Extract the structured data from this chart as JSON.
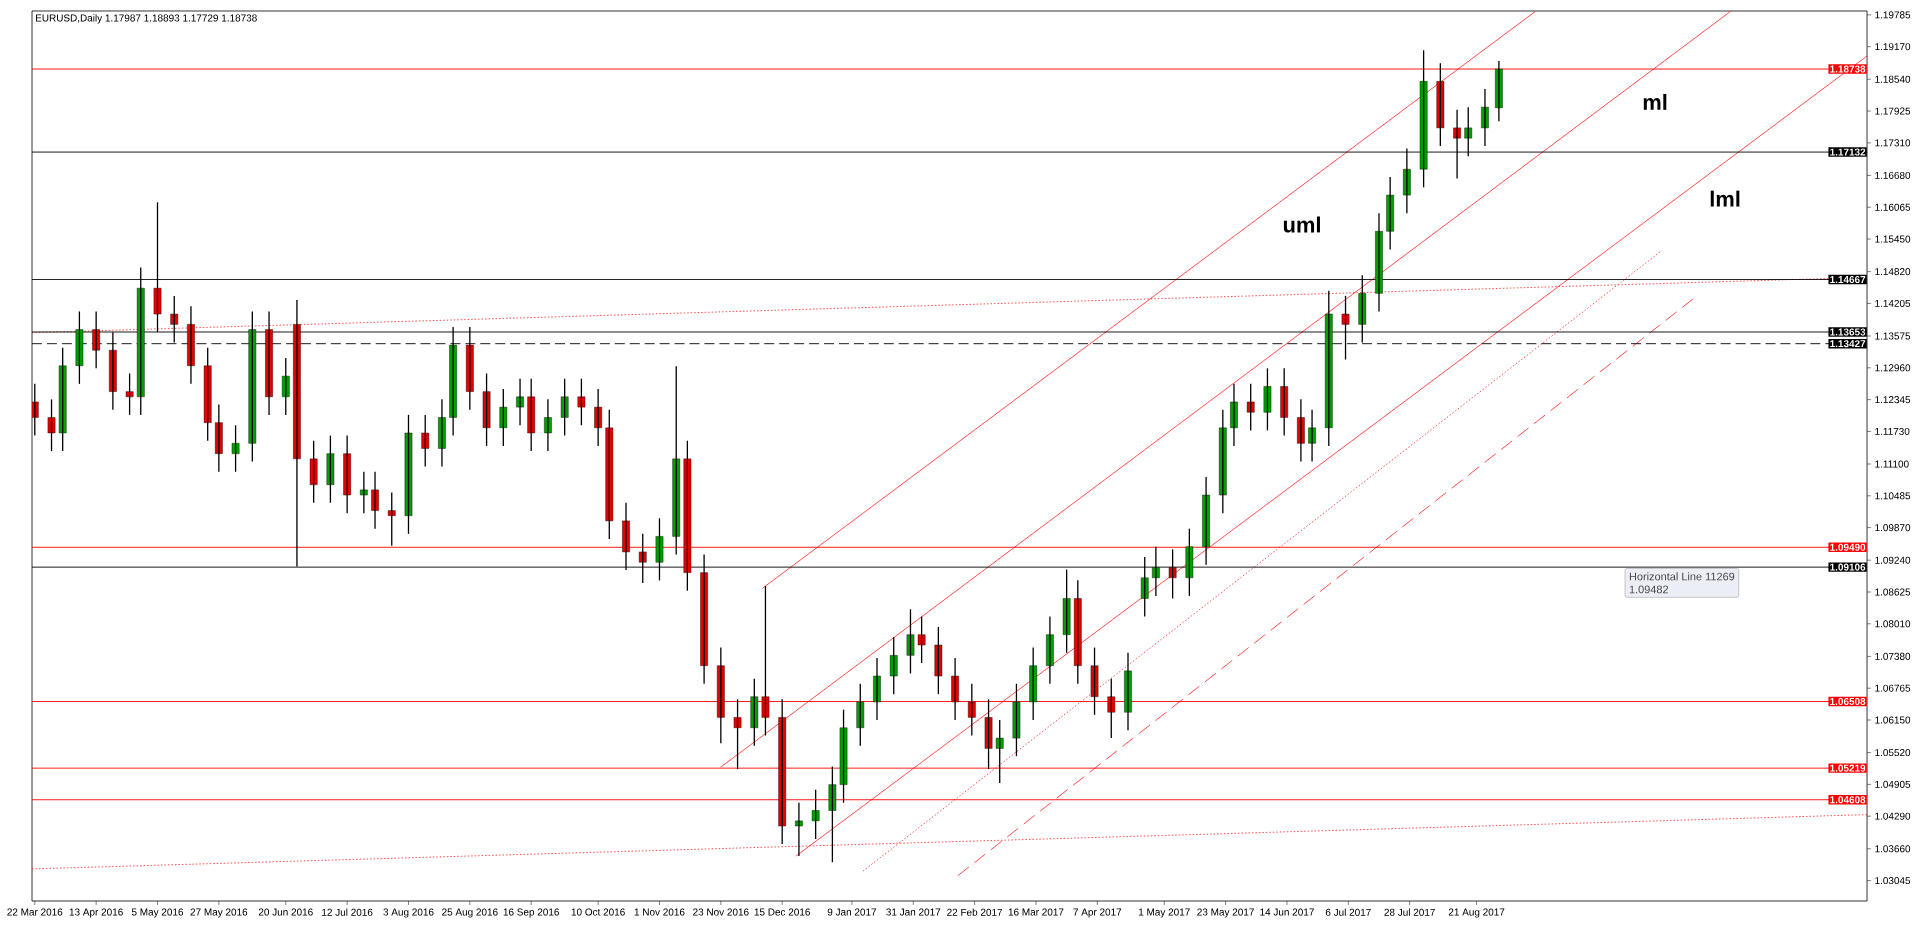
{
  "chart_data": {
    "type": "candlestick",
    "title": "EURUSD,Daily  1.17987 1.18893 1.17729 1.18738",
    "x": [
      "2016-03-22",
      "2016-03-28",
      "2016-04-01",
      "2016-04-07",
      "2016-04-13",
      "2016-04-19",
      "2016-04-25",
      "2016-04-29",
      "2016-05-05",
      "2016-05-11",
      "2016-05-17",
      "2016-05-23",
      "2016-05-27",
      "2016-06-02",
      "2016-06-08",
      "2016-06-14",
      "2016-06-20",
      "2016-06-24",
      "2016-06-30",
      "2016-07-06",
      "2016-07-12",
      "2016-07-18",
      "2016-07-22",
      "2016-07-28",
      "2016-08-03",
      "2016-08-09",
      "2016-08-15",
      "2016-08-19",
      "2016-08-25",
      "2016-08-31",
      "2016-09-06",
      "2016-09-12",
      "2016-09-16",
      "2016-09-22",
      "2016-09-28",
      "2016-10-04",
      "2016-10-10",
      "2016-10-14",
      "2016-10-20",
      "2016-10-26",
      "2016-11-01",
      "2016-11-07",
      "2016-11-11",
      "2016-11-17",
      "2016-11-23",
      "2016-11-29",
      "2016-12-05",
      "2016-12-09",
      "2016-12-15",
      "2016-12-21",
      "2016-12-27",
      "2017-01-02",
      "2017-01-06",
      "2017-01-12",
      "2017-01-18",
      "2017-01-24",
      "2017-01-30",
      "2017-02-03",
      "2017-02-09",
      "2017-02-15",
      "2017-02-21",
      "2017-02-27",
      "2017-03-03",
      "2017-03-09",
      "2017-03-15",
      "2017-03-21",
      "2017-03-27",
      "2017-03-31",
      "2017-04-06",
      "2017-04-12",
      "2017-04-18",
      "2017-04-24",
      "2017-04-28",
      "2017-05-04",
      "2017-05-10",
      "2017-05-16",
      "2017-05-22",
      "2017-05-26",
      "2017-06-01",
      "2017-06-07",
      "2017-06-13",
      "2017-06-19",
      "2017-06-23",
      "2017-06-29",
      "2017-07-05",
      "2017-07-11",
      "2017-07-17",
      "2017-07-21",
      "2017-07-27",
      "2017-08-02",
      "2017-08-08",
      "2017-08-14",
      "2017-08-18",
      "2017-08-24",
      "2017-08-29"
    ],
    "ohlc": [
      [
        1.123,
        1.1265,
        1.1165,
        1.12
      ],
      [
        1.12,
        1.1235,
        1.1135,
        1.117
      ],
      [
        1.117,
        1.1335,
        1.1135,
        1.13
      ],
      [
        1.13,
        1.1405,
        1.1265,
        1.137
      ],
      [
        1.137,
        1.1405,
        1.1295,
        1.133
      ],
      [
        1.133,
        1.1365,
        1.1215,
        1.125
      ],
      [
        1.125,
        1.1285,
        1.1205,
        1.124
      ],
      [
        1.124,
        1.149,
        1.1205,
        1.145
      ],
      [
        1.145,
        1.1616,
        1.1365,
        1.14
      ],
      [
        1.14,
        1.1435,
        1.1345,
        1.138
      ],
      [
        1.138,
        1.1415,
        1.1265,
        1.13
      ],
      [
        1.13,
        1.1335,
        1.1155,
        1.119
      ],
      [
        1.119,
        1.1225,
        1.1095,
        1.113
      ],
      [
        1.113,
        1.1185,
        1.1095,
        1.115
      ],
      [
        1.115,
        1.1405,
        1.1115,
        1.137
      ],
      [
        1.137,
        1.1405,
        1.1205,
        1.124
      ],
      [
        1.124,
        1.1315,
        1.1205,
        1.128
      ],
      [
        1.138,
        1.1427,
        1.0912,
        1.112
      ],
      [
        1.112,
        1.1155,
        1.1035,
        1.107
      ],
      [
        1.107,
        1.1165,
        1.1035,
        1.113
      ],
      [
        1.113,
        1.1165,
        1.1015,
        1.105
      ],
      [
        1.105,
        1.1095,
        1.1015,
        1.106
      ],
      [
        1.106,
        1.1095,
        1.0985,
        1.102
      ],
      [
        1.102,
        1.1055,
        1.0952,
        1.101
      ],
      [
        1.101,
        1.1205,
        1.0975,
        1.117
      ],
      [
        1.117,
        1.1205,
        1.1105,
        1.114
      ],
      [
        1.114,
        1.1235,
        1.1105,
        1.12
      ],
      [
        1.12,
        1.1375,
        1.1165,
        1.134
      ],
      [
        1.134,
        1.1375,
        1.1215,
        1.125
      ],
      [
        1.125,
        1.1285,
        1.1145,
        1.118
      ],
      [
        1.118,
        1.1255,
        1.1145,
        1.122
      ],
      [
        1.122,
        1.1275,
        1.1185,
        1.124
      ],
      [
        1.124,
        1.1275,
        1.1135,
        1.117
      ],
      [
        1.117,
        1.1235,
        1.1135,
        1.12
      ],
      [
        1.12,
        1.1275,
        1.1165,
        1.124
      ],
      [
        1.124,
        1.1275,
        1.1185,
        1.122
      ],
      [
        1.122,
        1.1255,
        1.1145,
        1.118
      ],
      [
        1.118,
        1.1215,
        1.0965,
        1.1
      ],
      [
        1.1,
        1.1035,
        1.0905,
        1.094
      ],
      [
        1.094,
        1.0975,
        1.088,
        1.092
      ],
      [
        1.092,
        1.1005,
        1.0885,
        1.097
      ],
      [
        1.097,
        1.1299,
        1.0935,
        1.112
      ],
      [
        1.112,
        1.1155,
        1.0865,
        1.09
      ],
      [
        1.09,
        1.0935,
        1.0685,
        1.072
      ],
      [
        1.072,
        1.0755,
        1.057,
        1.062
      ],
      [
        1.062,
        1.0655,
        1.052,
        1.06
      ],
      [
        1.06,
        1.0695,
        1.0565,
        1.066
      ],
      [
        1.066,
        1.0874,
        1.0585,
        1.062
      ],
      [
        1.062,
        1.0655,
        1.0375,
        1.041
      ],
      [
        1.041,
        1.0455,
        1.0352,
        1.042
      ],
      [
        1.042,
        1.048,
        1.0385,
        1.044
      ],
      [
        1.044,
        1.0525,
        1.034,
        1.049
      ],
      [
        1.049,
        1.0635,
        1.0455,
        1.06
      ],
      [
        1.06,
        1.0685,
        1.0565,
        1.065
      ],
      [
        1.065,
        1.0735,
        1.0615,
        1.07
      ],
      [
        1.07,
        1.0775,
        1.0665,
        1.074
      ],
      [
        1.074,
        1.0829,
        1.0705,
        1.078
      ],
      [
        1.078,
        1.0815,
        1.0725,
        1.076
      ],
      [
        1.076,
        1.0795,
        1.0665,
        1.07
      ],
      [
        1.07,
        1.0735,
        1.0615,
        1.065
      ],
      [
        1.065,
        1.0685,
        1.0585,
        1.062
      ],
      [
        1.062,
        1.0655,
        1.052,
        1.056
      ],
      [
        1.056,
        1.0615,
        1.0493,
        1.058
      ],
      [
        1.058,
        1.0685,
        1.0545,
        1.065
      ],
      [
        1.065,
        1.0755,
        1.0615,
        1.072
      ],
      [
        1.072,
        1.0815,
        1.0685,
        1.078
      ],
      [
        1.078,
        1.0906,
        1.0745,
        1.085
      ],
      [
        1.085,
        1.0885,
        1.0685,
        1.072
      ],
      [
        1.072,
        1.0755,
        1.0625,
        1.066
      ],
      [
        1.066,
        1.0695,
        1.058,
        1.063
      ],
      [
        1.063,
        1.0745,
        1.0595,
        1.071
      ],
      [
        1.085,
        1.093,
        1.0815,
        1.089
      ],
      [
        1.089,
        1.095,
        1.0855,
        1.091
      ],
      [
        1.091,
        1.0945,
        1.085,
        1.089
      ],
      [
        1.089,
        1.0985,
        1.0855,
        1.095
      ],
      [
        1.095,
        1.1085,
        1.0915,
        1.105
      ],
      [
        1.105,
        1.1215,
        1.1015,
        1.118
      ],
      [
        1.118,
        1.1265,
        1.1145,
        1.123
      ],
      [
        1.123,
        1.1265,
        1.1175,
        1.121
      ],
      [
        1.121,
        1.1295,
        1.1175,
        1.126
      ],
      [
        1.126,
        1.1295,
        1.1165,
        1.12
      ],
      [
        1.12,
        1.1235,
        1.1115,
        1.115
      ],
      [
        1.115,
        1.1215,
        1.1115,
        1.118
      ],
      [
        1.118,
        1.1445,
        1.1145,
        1.14
      ],
      [
        1.14,
        1.1435,
        1.1312,
        1.138
      ],
      [
        1.138,
        1.1475,
        1.1345,
        1.144
      ],
      [
        1.144,
        1.1595,
        1.1405,
        1.156
      ],
      [
        1.156,
        1.1665,
        1.1525,
        1.163
      ],
      [
        1.163,
        1.172,
        1.1595,
        1.168
      ],
      [
        1.168,
        1.191,
        1.1645,
        1.185
      ],
      [
        1.185,
        1.1885,
        1.1725,
        1.176
      ],
      [
        1.176,
        1.1795,
        1.1662,
        1.174
      ],
      [
        1.174,
        1.18,
        1.1705,
        1.176
      ],
      [
        1.176,
        1.1835,
        1.1725,
        1.18
      ],
      [
        1.17987,
        1.18893,
        1.17729,
        1.18738
      ]
    ],
    "series": [
      {
        "type": "line",
        "color": "#ff0000",
        "line_style": "solid",
        "x": [
          "2016-12-08",
          "2017-09-11"
        ],
        "values": [
          1.087,
          1.1985
        ]
      },
      {
        "type": "line",
        "color": "#ff0000",
        "line_style": "solid",
        "x": [
          "2016-11-23",
          "2017-11-20"
        ],
        "values": [
          1.0524,
          1.1985
        ]
      },
      {
        "type": "line",
        "color": "#ff0000",
        "line_style": "solid",
        "x": [
          "2016-12-20",
          "2018-01-08"
        ],
        "values": [
          1.0352,
          1.1899
        ]
      },
      {
        "type": "line",
        "color": "#ff0000",
        "line_style": "dotted",
        "x": [
          "2017-01-13",
          "2017-10-26"
        ],
        "values": [
          1.0323,
          1.1521
        ]
      },
      {
        "type": "line",
        "color": "#ff0000",
        "line_style": "dashed",
        "x": [
          "2017-02-16",
          "2017-11-08"
        ],
        "values": [
          1.0314,
          1.1435
        ]
      },
      {
        "type": "line",
        "color": "#ff0000",
        "line_style": "dotted",
        "x": [
          "2016-03-21",
          "2018-01-08"
        ],
        "values": [
          1.1364,
          1.1471
        ]
      },
      {
        "type": "line",
        "color": "#ff0000",
        "line_style": "dotted",
        "x": [
          "2016-03-21",
          "2018-01-08"
        ],
        "values": [
          1.0327,
          1.0432
        ]
      }
    ],
    "ref_lines": [
      {
        "axis": "y",
        "value": 1.18738,
        "label": "1.18738",
        "color": "#ff0000"
      },
      {
        "axis": "y",
        "value": 1.17132,
        "label": "1.17132",
        "color": "#000000"
      },
      {
        "axis": "y",
        "value": 1.14667,
        "label": "1.14667",
        "color": "#000000"
      },
      {
        "axis": "y",
        "value": 1.13653,
        "label": "1.13653",
        "color": "#000000"
      },
      {
        "axis": "y",
        "value": 1.13427,
        "label": "1.13427",
        "color": "#000000",
        "line_style": "dashed"
      },
      {
        "axis": "y",
        "value": 1.0949,
        "label": "1.09490",
        "color": "#ff0000"
      },
      {
        "axis": "y",
        "value": 1.09106,
        "label": "1.09106",
        "color": "#000000"
      },
      {
        "axis": "y",
        "value": 1.06508,
        "label": "1.06508",
        "color": "#ff0000"
      },
      {
        "axis": "y",
        "value": 1.05219,
        "label": "1.05219",
        "color": "#ff0000"
      },
      {
        "axis": "y",
        "value": 1.04608,
        "label": "1.04608",
        "color": "#ff0000"
      }
    ],
    "annotations": [
      {
        "text": "uml",
        "x": "2017-06-09",
        "y": 1.1607
      },
      {
        "text": "ml",
        "x": "2017-10-16",
        "y": 1.1844
      },
      {
        "text": "lml",
        "x": "2017-11-09",
        "y": 1.1657
      },
      "Horizontal Line 11269",
      "1.09482"
    ],
    "xlim": [
      "2016-03-21",
      "2018-01-08"
    ],
    "ylim": [
      1.0265,
      1.1986
    ],
    "xticks": [
      {
        "value": "2016-03-22",
        "label": "22 Mar 2016"
      },
      {
        "value": "2016-04-13",
        "label": "13 Apr 2016"
      },
      {
        "value": "2016-05-05",
        "label": "5 May 2016"
      },
      {
        "value": "2016-05-27",
        "label": "27 May 2016"
      },
      {
        "value": "2016-06-20",
        "label": "20 Jun 2016"
      },
      {
        "value": "2016-07-12",
        "label": "12 Jul 2016"
      },
      {
        "value": "2016-08-03",
        "label": "3 Aug 2016"
      },
      {
        "value": "2016-08-25",
        "label": "25 Aug 2016"
      },
      {
        "value": "2016-09-16",
        "label": "16 Sep 2016"
      },
      {
        "value": "2016-10-10",
        "label": "10 Oct 2016"
      },
      {
        "value": "2016-11-01",
        "label": "1 Nov 2016"
      },
      {
        "value": "2016-11-23",
        "label": "23 Nov 2016"
      },
      {
        "value": "2016-12-15",
        "label": "15 Dec 2016"
      },
      {
        "value": "2017-01-09",
        "label": "9 Jan 2017"
      },
      {
        "value": "2017-01-31",
        "label": "31 Jan 2017"
      },
      {
        "value": "2017-02-22",
        "label": "22 Feb 2017"
      },
      {
        "value": "2017-03-16",
        "label": "16 Mar 2017"
      },
      {
        "value": "2017-04-07",
        "label": "7 Apr 2017"
      },
      {
        "value": "2017-05-01",
        "label": "1 May 2017"
      },
      {
        "value": "2017-05-23",
        "label": "23 May 2017"
      },
      {
        "value": "2017-06-14",
        "label": "14 Jun 2017"
      },
      {
        "value": "2017-07-06",
        "label": "6 Jul 2017"
      },
      {
        "value": "2017-07-28",
        "label": "28 Jul 2017"
      },
      {
        "value": "2017-08-21",
        "label": "21 Aug 2017"
      }
    ],
    "yticks": [
      {
        "value": 1.03045,
        "label": "1.03045"
      },
      {
        "value": 1.0366,
        "label": "1.03660"
      },
      {
        "value": 1.0429,
        "label": "1.04290"
      },
      {
        "value": 1.04905,
        "label": "1.04905"
      },
      {
        "value": 1.0552,
        "label": "1.05520"
      },
      {
        "value": 1.0615,
        "label": "1.06150"
      },
      {
        "value": 1.06765,
        "label": "1.06765"
      },
      {
        "value": 1.0738,
        "label": "1.07380"
      },
      {
        "value": 1.0801,
        "label": "1.08010"
      },
      {
        "value": 1.08625,
        "label": "1.08625"
      },
      {
        "value": 1.0924,
        "label": "1.09240"
      },
      {
        "value": 1.0987,
        "label": "1.09870"
      },
      {
        "value": 1.10485,
        "label": "1.10485"
      },
      {
        "value": 1.111,
        "label": "1.11100"
      },
      {
        "value": 1.1173,
        "label": "1.11730"
      },
      {
        "value": 1.12345,
        "label": "1.12345"
      },
      {
        "value": 1.1296,
        "label": "1.12960"
      },
      {
        "value": 1.13575,
        "label": "1.13575"
      },
      {
        "value": 1.14205,
        "label": "1.14205"
      },
      {
        "value": 1.1482,
        "label": "1.14820"
      },
      {
        "value": 1.1545,
        "label": "1.15450"
      },
      {
        "value": 1.16065,
        "label": "1.16065"
      },
      {
        "value": 1.1668,
        "label": "1.16680"
      },
      {
        "value": 1.1731,
        "label": "1.17310"
      },
      {
        "value": 1.17925,
        "label": "1.17925"
      },
      {
        "value": 1.1854,
        "label": "1.18540"
      },
      {
        "value": 1.1917,
        "label": "1.19170"
      },
      {
        "value": 1.19785,
        "label": "1.19785"
      }
    ]
  }
}
